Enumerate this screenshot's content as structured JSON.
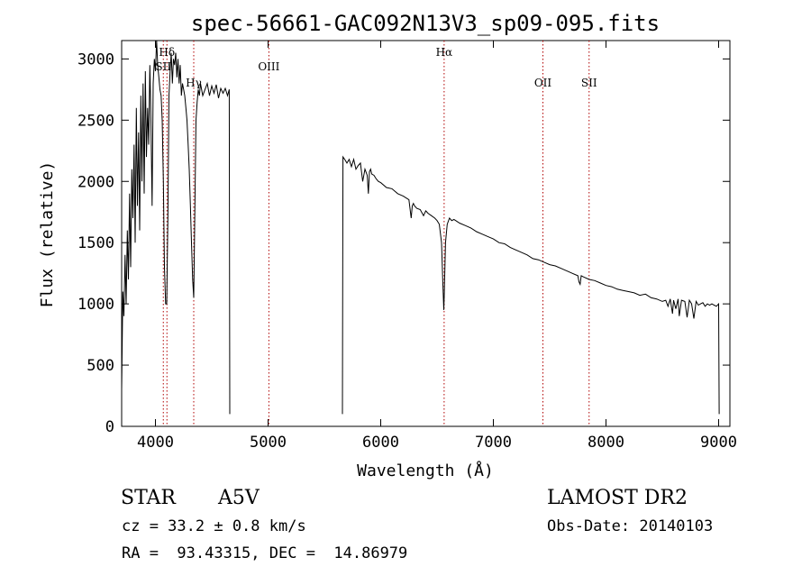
{
  "chart_data": {
    "type": "line",
    "title": "spec-56661-GAC092N13V3_sp09-095.fits",
    "xlabel": "Wavelength (Å)",
    "ylabel": "Flux (relative)",
    "xlim": [
      3700,
      9100
    ],
    "ylim": [
      0,
      3150
    ],
    "xticks": [
      4000,
      5000,
      6000,
      7000,
      8000,
      9000
    ],
    "yticks": [
      0,
      500,
      1000,
      1500,
      2000,
      2500,
      3000
    ],
    "grid": false,
    "lines": [
      {
        "label": "Hδ",
        "x": 4102
      },
      {
        "label": "SII",
        "x": 4070
      },
      {
        "label": "Hγ",
        "x": 4340
      },
      {
        "label": "OIII",
        "x": 5007
      },
      {
        "label": "Hα",
        "x": 6563
      },
      {
        "label": "OII",
        "x": 7440
      },
      {
        "label": "SII",
        "x": 7850
      }
    ],
    "series": [
      {
        "segments": [
          {
            "x": [
              3700,
              3710,
              3720,
              3730,
              3740,
              3750,
              3760,
              3770,
              3780,
              3790,
              3800,
              3810,
              3820,
              3830,
              3840,
              3850,
              3860,
              3870,
              3880,
              3890,
              3900,
              3910,
              3920,
              3930,
              3940,
              3950,
              3960,
              3970,
              3980,
              3990,
              4000,
              4010,
              4020,
              4030,
              4040,
              4050,
              4060,
              4070,
              4080,
              4090,
              4100,
              4110,
              4120,
              4130,
              4140,
              4150,
              4160,
              4170,
              4180,
              4190,
              4200,
              4210,
              4220,
              4230,
              4240,
              4250,
              4260,
              4270,
              4280,
              4290,
              4300,
              4310,
              4320,
              4330,
              4340,
              4350,
              4360,
              4370,
              4380,
              4390,
              4400,
              4420,
              4440,
              4460,
              4480,
              4500,
              4520,
              4540,
              4560,
              4580,
              4600,
              4620,
              4640,
              4655,
              4660
            ],
            "y": [
              300,
              1100,
              900,
              1400,
              1000,
              1600,
              1200,
              1900,
              1300,
              2100,
              1700,
              2300,
              1500,
              2600,
              1800,
              2400,
              1600,
              2700,
              2000,
              2800,
              1900,
              2900,
              2200,
              2600,
              2300,
              2950,
              2500,
              1800,
              2800,
              3000,
              2900,
              3150,
              2950,
              2850,
              2750,
              2700,
              2500,
              2000,
              1300,
              1000,
              1000,
              1700,
              2700,
              2900,
              3050,
              2800,
              3000,
              2950,
              3050,
              2850,
              3000,
              2800,
              2950,
              2700,
              2800,
              2750,
              2700,
              2600,
              2500,
              2300,
              2100,
              1800,
              1500,
              1200,
              1050,
              1800,
              2500,
              2650,
              2750,
              2700,
              2800,
              2700,
              2750,
              2800,
              2700,
              2780,
              2720,
              2790,
              2680,
              2760,
              2720,
              2760,
              2700,
              2750,
              100
            ]
          },
          {
            "x": [
              5660,
              5665,
              5680,
              5700,
              5720,
              5740,
              5760,
              5780,
              5800,
              5820,
              5840,
              5860,
              5880,
              5890,
              5900,
              5910,
              5920,
              5940,
              5960,
              5980,
              6000,
              6050,
              6100,
              6150,
              6200,
              6250,
              6270,
              6280,
              6290,
              6300,
              6320,
              6350,
              6380,
              6400,
              6420,
              6450,
              6480,
              6500,
              6520,
              6540,
              6550,
              6560,
              6565,
              6575,
              6590,
              6610,
              6630,
              6650,
              6700,
              6750,
              6800,
              6850,
              6900,
              6950,
              7000,
              7050,
              7100,
              7150,
              7200,
              7250,
              7300,
              7350,
              7400,
              7450,
              7500,
              7550,
              7600,
              7650,
              7700,
              7750,
              7760,
              7770,
              7780,
              7800,
              7850,
              7900,
              7950,
              8000,
              8050,
              8100,
              8150,
              8200,
              8250,
              8300,
              8350,
              8400,
              8450,
              8500,
              8530,
              8550,
              8570,
              8590,
              8600,
              8620,
              8640,
              8650,
              8670,
              8700,
              8720,
              8740,
              8760,
              8780,
              8800,
              8820,
              8840,
              8860,
              8880,
              8900,
              8920,
              8940,
              8960,
              8980,
              9000,
              9005
            ],
            "y": [
              100,
              2200,
              2180,
              2150,
              2180,
              2120,
              2180,
              2100,
              2130,
              2150,
              2000,
              2100,
              2050,
              1900,
              2080,
              2100,
              2060,
              2050,
              2020,
              2000,
              1990,
              1950,
              1940,
              1900,
              1880,
              1850,
              1700,
              1800,
              1820,
              1800,
              1780,
              1770,
              1720,
              1760,
              1740,
              1720,
              1700,
              1680,
              1650,
              1500,
              1200,
              950,
              1100,
              1500,
              1650,
              1700,
              1680,
              1690,
              1660,
              1640,
              1620,
              1590,
              1570,
              1550,
              1530,
              1500,
              1490,
              1460,
              1440,
              1420,
              1400,
              1370,
              1360,
              1340,
              1320,
              1310,
              1290,
              1270,
              1250,
              1230,
              1180,
              1160,
              1230,
              1220,
              1200,
              1190,
              1170,
              1150,
              1140,
              1120,
              1110,
              1100,
              1090,
              1070,
              1080,
              1050,
              1040,
              1020,
              1030,
              980,
              1040,
              920,
              1030,
              960,
              1040,
              900,
              1030,
              1020,
              890,
              1030,
              1000,
              880,
              1020,
              990,
              1000,
              1010,
              980,
              1000,
              990,
              1000,
              990,
              980,
              1000,
              100
            ]
          }
        ]
      }
    ]
  },
  "info": {
    "object_class": "STAR",
    "subclass": "A5V",
    "survey": "LAMOST DR2",
    "redshift": "cz = 33.2 ± 0.8 km/s",
    "obs_date": "Obs-Date: 20140103",
    "coords": "RA =  93.43315, DEC =  14.86979"
  }
}
